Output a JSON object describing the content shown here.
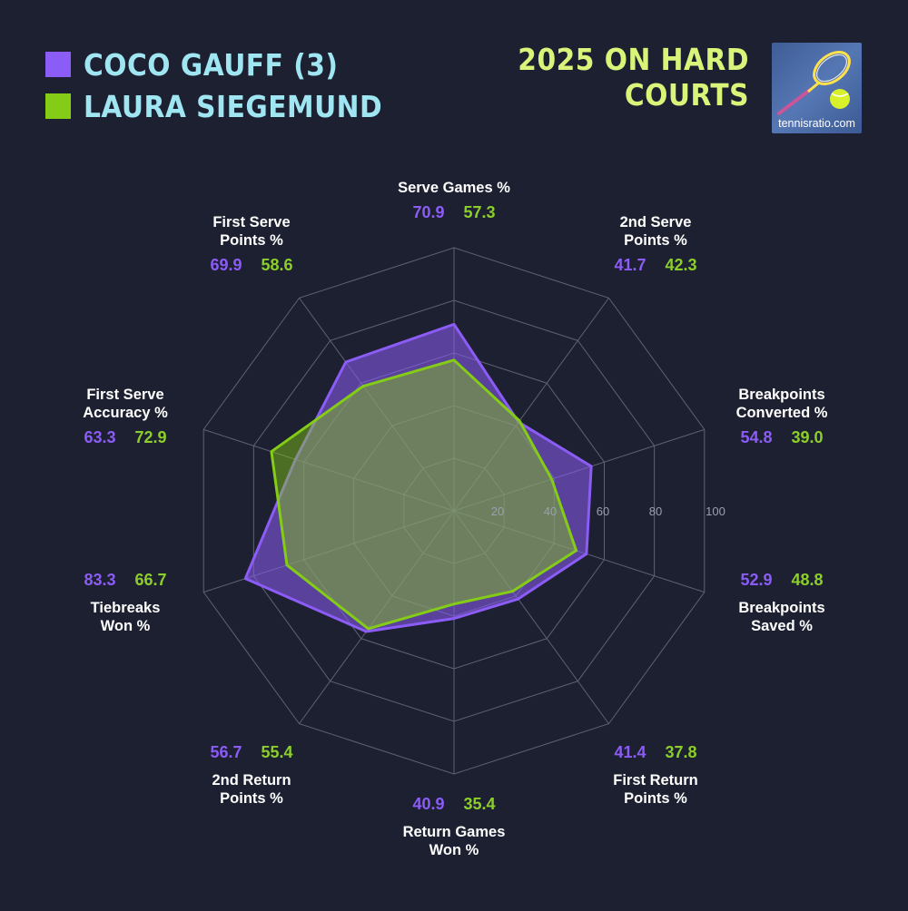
{
  "legend": [
    {
      "name": "COCO GAUFF (3)",
      "color": "#8b5cf6"
    },
    {
      "name": "LAURA SIEGEMUND",
      "color": "#84cc16"
    }
  ],
  "headline": "2025 ON HARD COURTS",
  "logo": {
    "text": "tennisratio.com",
    "icon": "tennis-racket-ball-icon"
  },
  "colors": {
    "background": "#1d2030",
    "gauff": "#8b5cf6",
    "siegemund": "#84cc16",
    "gauff_text": "#8b5cf6",
    "siegemund_text": "#8ccf2a",
    "label": "#ffffff",
    "tick": "#9aa0b0",
    "grid": "#5d6273"
  },
  "chart_data": {
    "type": "radar",
    "categories": [
      "Serve Games %",
      "2nd Serve Points %",
      "Breakpoints Converted %",
      "Breakpoints Saved %",
      "First Return Points %",
      "Return Games Won %",
      "2nd Return Points %",
      "Tiebreaks Won %",
      "First Serve Accuracy %",
      "First Serve Points %"
    ],
    "label_lines": [
      [
        "Serve Games %"
      ],
      [
        "2nd Serve",
        "Points %"
      ],
      [
        "Breakpoints",
        "Converted %"
      ],
      [
        "Breakpoints",
        "Saved %"
      ],
      [
        "First Return",
        "Points %"
      ],
      [
        "Return Games",
        "Won %"
      ],
      [
        "2nd Return",
        "Points %"
      ],
      [
        "Tiebreaks",
        "Won %"
      ],
      [
        "First Serve",
        "Accuracy %"
      ],
      [
        "First Serve",
        "Points %"
      ]
    ],
    "series": [
      {
        "name": "COCO GAUFF (3)",
        "values": [
          70.9,
          41.7,
          54.8,
          52.9,
          41.4,
          40.9,
          56.7,
          83.3,
          63.3,
          69.9
        ]
      },
      {
        "name": "LAURA SIEGEMUND",
        "values": [
          57.3,
          42.3,
          39.0,
          48.8,
          37.8,
          35.4,
          55.4,
          66.7,
          72.9,
          58.6
        ]
      }
    ],
    "value_labels": [
      [
        "70.9",
        "57.3"
      ],
      [
        "41.7",
        "42.3"
      ],
      [
        "54.8",
        "39.0"
      ],
      [
        "52.9",
        "48.8"
      ],
      [
        "41.4",
        "37.8"
      ],
      [
        "40.9",
        "35.4"
      ],
      [
        "56.7",
        "55.4"
      ],
      [
        "83.3",
        "66.7"
      ],
      [
        "63.3",
        "72.9"
      ],
      [
        "69.9",
        "58.6"
      ]
    ],
    "r_ticks": [
      20,
      40,
      60,
      80,
      100
    ],
    "r_tick_labels": [
      "20",
      "40",
      "60",
      "80",
      "100"
    ],
    "rlim": [
      0,
      100
    ],
    "grid": true,
    "legend_position": "top-left"
  }
}
